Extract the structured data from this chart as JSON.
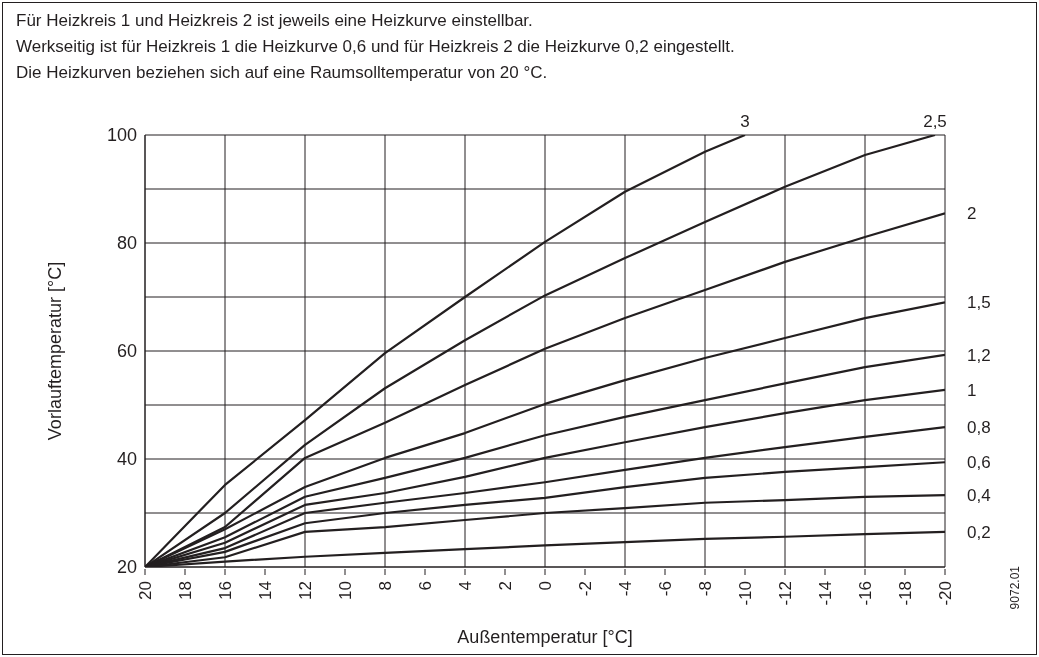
{
  "chart_data": {
    "type": "line",
    "title": "Für Heizkreis 1 und Heizkreis 2 ist jeweils eine Heizkurve einstellbar.",
    "subtitle": "Werkseitig ist für Heizkreis 1 die Heizkurve 0,6 und für Heizkreis 2 die Heizkurve 0,2 eingestellt.\nDie Heizkurven beziehen sich auf eine Raumsolltemperatur von 20 °C.",
    "xlabel": "Außentemperatur [°C]",
    "ylabel": "Vorlauftemperatur  [°C]",
    "annotations": [
      "9072.01"
    ],
    "x": [
      20,
      16,
      12,
      8,
      4,
      0,
      -4,
      -8,
      -12,
      -16,
      -20
    ],
    "series": [
      {
        "name": "3",
        "color": "#231f20",
        "x": [
          20,
          16,
          12,
          8,
          4,
          0,
          -4,
          -8,
          -10
        ],
        "values": [
          20,
          35.2,
          47.2,
          59.6,
          70,
          80.2,
          89.5,
          96.9,
          100
        ]
      },
      {
        "name": "2,5",
        "color": "#231f20",
        "x": [
          20,
          16,
          12,
          8,
          4,
          0,
          -4,
          -8,
          -12,
          -16,
          -19.5
        ],
        "values": [
          20,
          30,
          42.6,
          53.1,
          62,
          70.3,
          77.2,
          83.9,
          90.4,
          96.3,
          100
        ]
      },
      {
        "name": "2",
        "color": "#231f20",
        "values": [
          20,
          27.4,
          40.2,
          46.7,
          53.7,
          60.4,
          66.1,
          71.3,
          76.5,
          81.1,
          85.5
        ]
      },
      {
        "name": "1,5",
        "color": "#231f20",
        "values": [
          20,
          27,
          34.8,
          40.2,
          44.8,
          50.2,
          54.6,
          58.7,
          62.4,
          66.1,
          69
        ]
      },
      {
        "name": "1,2",
        "color": "#231f20",
        "values": [
          20,
          25.5,
          33,
          36.5,
          40.2,
          44.4,
          47.8,
          50.9,
          54,
          57,
          59.3
        ]
      },
      {
        "name": "1",
        "color": "#231f20",
        "values": [
          20,
          24.5,
          31.5,
          33.7,
          36.7,
          40.2,
          43.1,
          45.9,
          48.5,
          50.9,
          52.8
        ]
      },
      {
        "name": "0,8",
        "color": "#231f20",
        "values": [
          20,
          23.5,
          30,
          31.9,
          33.7,
          35.7,
          38,
          40.2,
          42.2,
          44.1,
          45.9
        ]
      },
      {
        "name": "0,6",
        "color": "#231f20",
        "values": [
          20,
          22.8,
          28.1,
          30,
          31.5,
          32.8,
          34.8,
          36.5,
          37.6,
          38.5,
          39.4
        ]
      },
      {
        "name": "0,4",
        "color": "#231f20",
        "values": [
          20,
          21.8,
          26.5,
          27.4,
          28.7,
          30,
          30.9,
          31.9,
          32.4,
          33,
          33.3
        ]
      },
      {
        "name": "0,2",
        "color": "#231f20",
        "values": [
          20,
          21,
          21.9,
          22.6,
          23.3,
          24,
          24.6,
          25.2,
          25.6,
          26.1,
          26.5
        ]
      }
    ],
    "xlim": [
      20,
      -20
    ],
    "xticks": [
      20,
      18,
      16,
      14,
      12,
      10,
      8,
      6,
      4,
      2,
      0,
      -2,
      -4,
      -6,
      -8,
      -10,
      -12,
      -14,
      -16,
      -18,
      -20
    ],
    "ylim": [
      20,
      100
    ],
    "yticks": [
      20,
      {
        "value": 30,
        "label": null
      },
      40,
      {
        "value": 50,
        "label": null
      },
      60,
      {
        "value": 70,
        "label": null
      },
      80,
      {
        "value": 90,
        "label": null
      },
      100
    ],
    "grid": true,
    "marker": "none",
    "line_style": "solid"
  }
}
